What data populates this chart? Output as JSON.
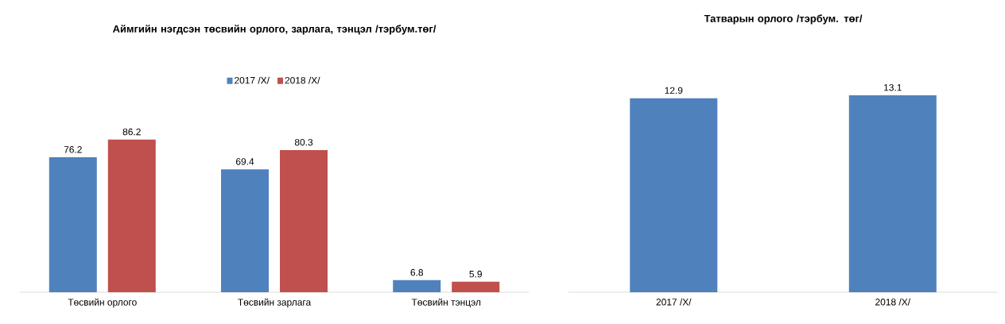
{
  "chart_data": [
    {
      "type": "bar",
      "title": "Аймгийн нэгдсэн төсвийн орлого, зарлага, тэнцэл /тэрбум.төг/",
      "categories": [
        "Төсвийн орлого",
        "Төсвийн зарлага",
        "Төсвийн тэнцэл"
      ],
      "series": [
        {
          "name": "2017 /X/",
          "color": "#4f81bd",
          "values": [
            76.2,
            69.4,
            6.8
          ]
        },
        {
          "name": "2018 /X/",
          "color": "#c0504d",
          "values": [
            86.2,
            80.3,
            5.9
          ]
        }
      ],
      "data_labels": true,
      "legend": "top",
      "tick_labels": "x"
    },
    {
      "type": "bar",
      "title": "Татварын орлого /тэрбум. төг/",
      "categories": [
        "2017 /X/",
        "2018 /X/"
      ],
      "values": [
        12.9,
        13.1
      ],
      "color": "#4f81bd",
      "data_labels": true,
      "tick_labels": "x"
    }
  ]
}
